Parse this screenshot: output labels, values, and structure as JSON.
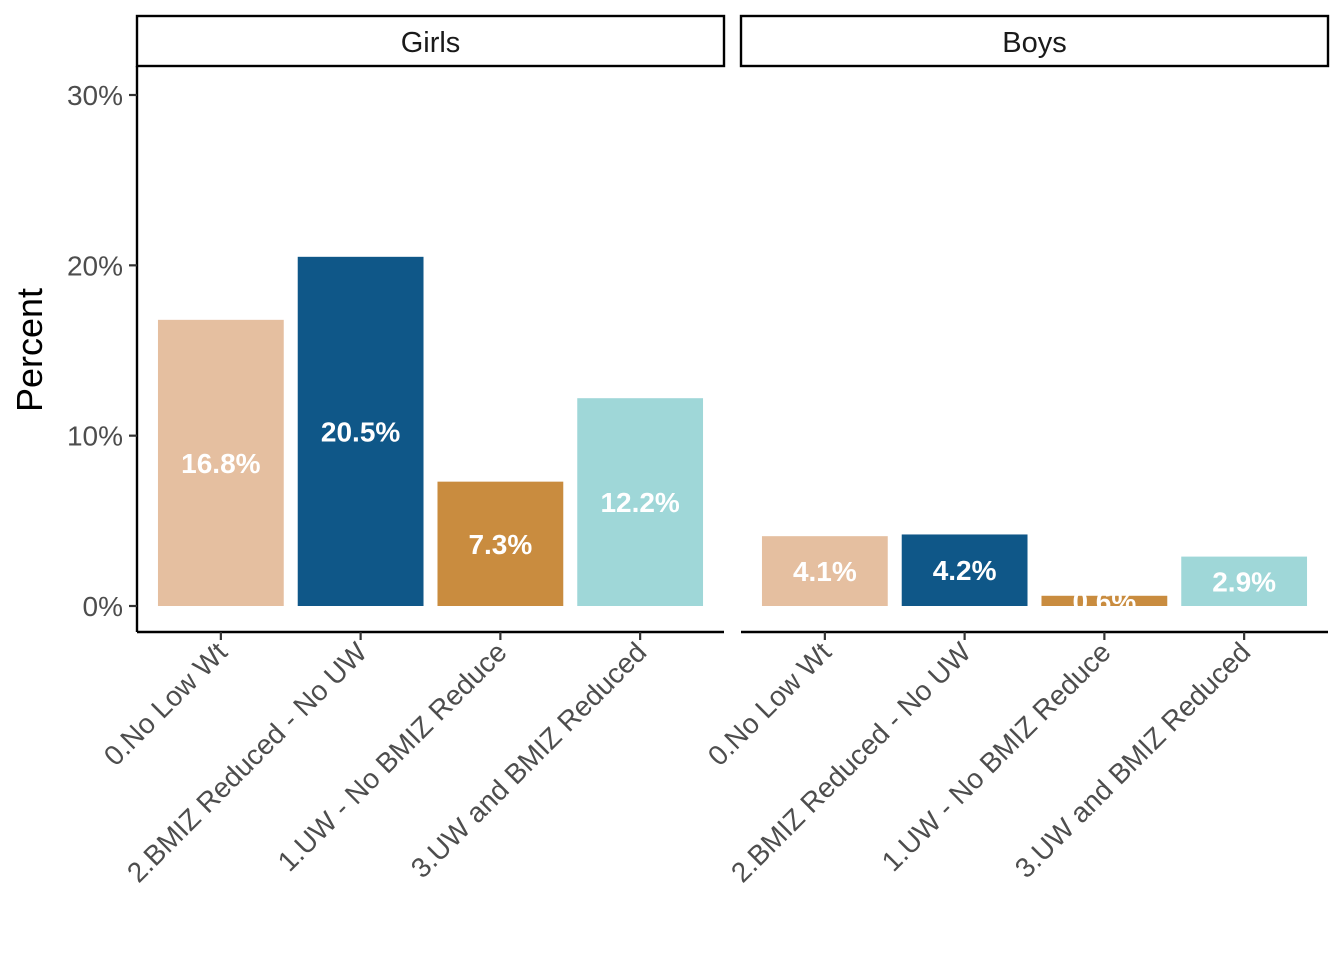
{
  "chart_data": {
    "type": "bar",
    "ylabel": "Percent",
    "ylim": [
      0,
      0.31
    ],
    "yticks": [
      0,
      0.1,
      0.2,
      0.3
    ],
    "ytick_labels": [
      "0%",
      "10%",
      "20%",
      "30%"
    ],
    "grid": false,
    "legend": "none",
    "categories": [
      "0.No Low Wt",
      "2.BMIZ Reduced - No UW",
      "1.UW - No BMIZ Reduce",
      "3.UW and BMIZ Reduced"
    ],
    "colors": [
      "#e5bfa0",
      "#0f5788",
      "#c98c3f",
      "#9fd7d8"
    ],
    "panels": [
      {
        "title": "Girls",
        "values": [
          0.168,
          0.205,
          0.073,
          0.122
        ],
        "labels": [
          "16.8%",
          "20.5%",
          "7.3%",
          "12.2%"
        ]
      },
      {
        "title": "Boys",
        "values": [
          0.041,
          0.042,
          0.006,
          0.029
        ],
        "labels": [
          "4.1%",
          "4.2%",
          "0.6%",
          "2.9%"
        ]
      }
    ]
  }
}
